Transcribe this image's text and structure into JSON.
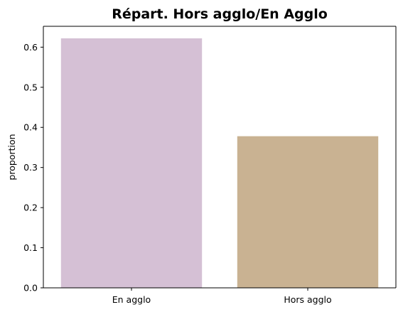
{
  "chart_data": {
    "type": "bar",
    "title": "Répart. Hors agglo/En Agglo",
    "xlabel": "",
    "ylabel": "proportion",
    "categories": [
      "En agglo",
      "Hors agglo"
    ],
    "values": [
      0.622,
      0.378
    ],
    "colors": [
      "#d5c0d5",
      "#c9b292"
    ],
    "ylim": [
      0,
      0.652
    ],
    "yticks": [
      0.0,
      0.1,
      0.2,
      0.3,
      0.4,
      0.5,
      0.6
    ],
    "ytick_labels": [
      "0.0",
      "0.1",
      "0.2",
      "0.3",
      "0.4",
      "0.5",
      "0.6"
    ],
    "grid": false,
    "legend": "none"
  }
}
